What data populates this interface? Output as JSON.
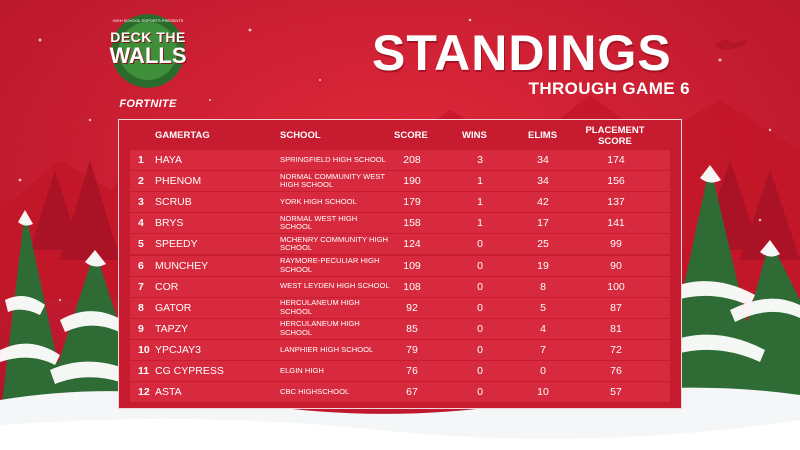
{
  "header": {
    "logo_small_text": "HIGH SCHOOL ESPORTS PRESENTS",
    "logo_line1": "DECK THE",
    "logo_line2": "WALLS",
    "logo_featuring": "FORTNITE",
    "title": "STANDINGS",
    "subtitle": "THROUGH GAME 6"
  },
  "table": {
    "columns": [
      "GAMERTAG",
      "SCHOOL",
      "SCORE",
      "WINS",
      "ELIMS",
      "PLACEMENT SCORE"
    ],
    "rows": [
      {
        "rank": "1",
        "gamertag": "HAYA",
        "school": "SPRINGFIELD HIGH SCHOOL",
        "score": "208",
        "wins": "3",
        "elims": "34",
        "placement": "174"
      },
      {
        "rank": "2",
        "gamertag": "PHENOM",
        "school": "NORMAL COMMUNITY WEST HIGH SCHOOL",
        "score": "190",
        "wins": "1",
        "elims": "34",
        "placement": "156"
      },
      {
        "rank": "3",
        "gamertag": "SCRUB",
        "school": "YORK HIGH SCHOOL",
        "score": "179",
        "wins": "1",
        "elims": "42",
        "placement": "137"
      },
      {
        "rank": "4",
        "gamertag": "BRYS",
        "school": "NORMAL WEST HIGH SCHOOL",
        "score": "158",
        "wins": "1",
        "elims": "17",
        "placement": "141"
      },
      {
        "rank": "5",
        "gamertag": "SPEEDY",
        "school": "MCHENRY COMMUNITY HIGH SCHOOL",
        "score": "124",
        "wins": "0",
        "elims": "25",
        "placement": "99"
      },
      {
        "rank": "6",
        "gamertag": "MUNCHEY",
        "school": "RAYMORE-PECULIAR HIGH SCHOOL",
        "score": "109",
        "wins": "0",
        "elims": "19",
        "placement": "90"
      },
      {
        "rank": "7",
        "gamertag": "COR",
        "school": "WEST LEYDEN HIGH SCHOOL",
        "score": "108",
        "wins": "0",
        "elims": "8",
        "placement": "100"
      },
      {
        "rank": "8",
        "gamertag": "GATOR",
        "school": "HERCULANEUM HIGH SCHOOL",
        "score": "92",
        "wins": "0",
        "elims": "5",
        "placement": "87"
      },
      {
        "rank": "9",
        "gamertag": "TAPZY",
        "school": "HERCULANEUM HIGH SCHOOL",
        "score": "85",
        "wins": "0",
        "elims": "4",
        "placement": "81"
      },
      {
        "rank": "10",
        "gamertag": "YPCJAY3",
        "school": "LANPHIER HIGH SCHOOL",
        "score": "79",
        "wins": "0",
        "elims": "7",
        "placement": "72"
      },
      {
        "rank": "11",
        "gamertag": "CG CYPRESS",
        "school": "ELGIN HIGH",
        "score": "76",
        "wins": "0",
        "elims": "0",
        "placement": "76"
      },
      {
        "rank": "12",
        "gamertag": "ASTA",
        "school": "CBC HIGHSCHOOL",
        "score": "67",
        "wins": "0",
        "elims": "10",
        "placement": "57"
      }
    ]
  },
  "colors": {
    "background": "#c8192d",
    "panel": "#c71b30",
    "row": "#d72a3e",
    "tree": "#2f6b35",
    "snow": "#ffffff"
  }
}
